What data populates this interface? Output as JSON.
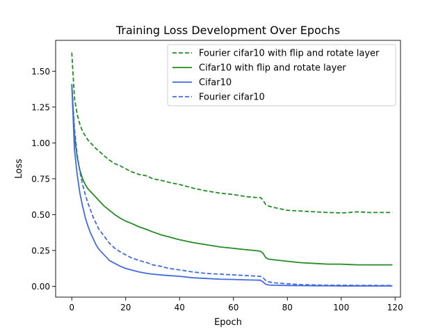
{
  "chart_data": {
    "type": "line",
    "title": "Training Loss Development Over Epochs",
    "xlabel": "Epoch",
    "ylabel": "Loss",
    "xlim": [
      -6,
      122
    ],
    "ylim": [
      -0.075,
      1.715
    ],
    "xticks": [
      0,
      20,
      40,
      60,
      80,
      100,
      120
    ],
    "yticks": [
      0.0,
      0.25,
      0.5,
      0.75,
      1.0,
      1.25,
      1.5
    ],
    "xtick_labels": [
      "0",
      "20",
      "40",
      "60",
      "80",
      "100",
      "120"
    ],
    "ytick_labels": [
      "0.00",
      "0.25",
      "0.50",
      "0.75",
      "1.00",
      "1.25",
      "1.50"
    ],
    "grid": false,
    "legend_position": "top-right",
    "series": [
      {
        "name": "Fourier cifar10 with flip and rotate layer",
        "color": "#228B22",
        "dash": "dashed",
        "x": [
          0,
          1,
          2,
          3,
          4,
          5,
          6,
          7,
          8,
          9,
          10,
          12,
          14,
          16,
          18,
          20,
          22,
          25,
          28,
          30,
          33,
          36,
          40,
          45,
          50,
          55,
          60,
          65,
          68,
          70,
          71,
          72,
          73,
          75,
          80,
          85,
          90,
          95,
          100,
          103,
          106,
          110,
          115,
          119
        ],
        "y": [
          1.63,
          1.31,
          1.2,
          1.13,
          1.08,
          1.05,
          1.02,
          1.0,
          0.98,
          0.96,
          0.945,
          0.91,
          0.88,
          0.855,
          0.84,
          0.82,
          0.8,
          0.78,
          0.77,
          0.75,
          0.74,
          0.725,
          0.71,
          0.685,
          0.665,
          0.65,
          0.64,
          0.625,
          0.62,
          0.62,
          0.6,
          0.57,
          0.56,
          0.55,
          0.53,
          0.525,
          0.52,
          0.515,
          0.512,
          0.515,
          0.52,
          0.515,
          0.515,
          0.515
        ]
      },
      {
        "name": "Cifar10 with flip and rotate layer",
        "color": "#228B22",
        "dash": "solid",
        "x": [
          0,
          1,
          2,
          3,
          4,
          5,
          6,
          7,
          8,
          9,
          10,
          12,
          14,
          16,
          18,
          20,
          22,
          25,
          28,
          30,
          33,
          36,
          40,
          45,
          50,
          55,
          60,
          65,
          68,
          70,
          71,
          72,
          73,
          75,
          80,
          85,
          90,
          95,
          100,
          103,
          106,
          110,
          115,
          119
        ],
        "y": [
          1.41,
          1.05,
          0.9,
          0.81,
          0.75,
          0.71,
          0.68,
          0.66,
          0.64,
          0.62,
          0.6,
          0.56,
          0.53,
          0.5,
          0.475,
          0.455,
          0.44,
          0.415,
          0.395,
          0.38,
          0.36,
          0.345,
          0.325,
          0.305,
          0.29,
          0.275,
          0.265,
          0.255,
          0.25,
          0.245,
          0.23,
          0.2,
          0.19,
          0.185,
          0.175,
          0.165,
          0.16,
          0.155,
          0.155,
          0.152,
          0.15,
          0.15,
          0.15,
          0.15
        ]
      },
      {
        "name": "Cifar10",
        "color": "#4169E1",
        "dash": "solid",
        "x": [
          0,
          1,
          2,
          3,
          4,
          5,
          6,
          7,
          8,
          9,
          10,
          12,
          14,
          16,
          18,
          20,
          22,
          25,
          28,
          30,
          33,
          36,
          40,
          45,
          50,
          55,
          60,
          65,
          68,
          70,
          71,
          72,
          73,
          75,
          80,
          85,
          90,
          95,
          100,
          105,
          110,
          115,
          119
        ],
        "y": [
          1.41,
          0.95,
          0.78,
          0.65,
          0.56,
          0.48,
          0.42,
          0.37,
          0.33,
          0.29,
          0.26,
          0.22,
          0.18,
          0.16,
          0.14,
          0.125,
          0.115,
          0.1,
          0.09,
          0.085,
          0.08,
          0.075,
          0.07,
          0.06,
          0.055,
          0.05,
          0.048,
          0.045,
          0.044,
          0.043,
          0.03,
          0.015,
          0.01,
          0.008,
          0.006,
          0.005,
          0.004,
          0.004,
          0.003,
          0.003,
          0.003,
          0.003,
          0.003
        ]
      },
      {
        "name": "Fourier cifar10",
        "color": "#4169E1",
        "dash": "dashed",
        "x": [
          0,
          1,
          2,
          3,
          4,
          5,
          6,
          7,
          8,
          9,
          10,
          12,
          14,
          16,
          18,
          20,
          22,
          25,
          28,
          30,
          33,
          36,
          40,
          45,
          50,
          55,
          60,
          65,
          68,
          70,
          71,
          72,
          73,
          75,
          80,
          85,
          90,
          95,
          100,
          105,
          110,
          115,
          119
        ],
        "y": [
          1.4,
          1.1,
          0.92,
          0.8,
          0.71,
          0.64,
          0.58,
          0.53,
          0.48,
          0.44,
          0.4,
          0.35,
          0.3,
          0.265,
          0.24,
          0.22,
          0.2,
          0.18,
          0.165,
          0.15,
          0.14,
          0.125,
          0.115,
          0.1,
          0.09,
          0.085,
          0.08,
          0.075,
          0.072,
          0.07,
          0.06,
          0.04,
          0.032,
          0.025,
          0.018,
          0.012,
          0.01,
          0.008,
          0.008,
          0.007,
          0.007,
          0.006,
          0.006
        ]
      }
    ]
  }
}
